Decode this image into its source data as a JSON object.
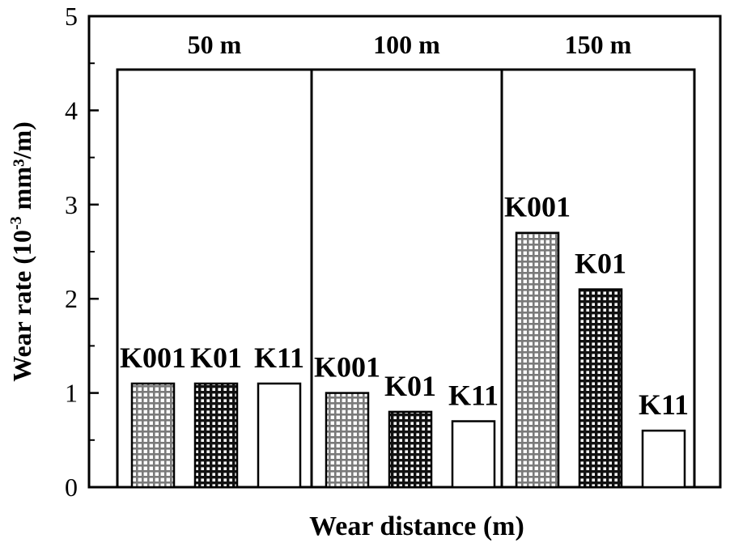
{
  "chart_data": {
    "type": "bar",
    "title": "",
    "xlabel": "Wear distance (m)",
    "ylabel_main": "Wear rate (10",
    "ylabel_sup": "-3",
    "ylabel_rest": " mm³/m)",
    "ylim": [
      0,
      5
    ],
    "yticks": [
      "0",
      "1",
      "2",
      "3",
      "4",
      "5"
    ],
    "groups": [
      {
        "label": "50 m",
        "bars": [
          {
            "name": "K001",
            "value": 1.1
          },
          {
            "name": "K01",
            "value": 1.1
          },
          {
            "name": "K11",
            "value": 1.1
          }
        ]
      },
      {
        "label": "100 m",
        "bars": [
          {
            "name": "K001",
            "value": 1.0
          },
          {
            "name": "K01",
            "value": 0.8
          },
          {
            "name": "K11",
            "value": 0.7
          }
        ]
      },
      {
        "label": "150 m",
        "bars": [
          {
            "name": "K001",
            "value": 2.7
          },
          {
            "name": "K01",
            "value": 2.1
          },
          {
            "name": "K11",
            "value": 0.6
          }
        ]
      }
    ],
    "series_styles": {
      "K001": "light-grid",
      "K01": "dark-grid",
      "K11": "white"
    }
  }
}
